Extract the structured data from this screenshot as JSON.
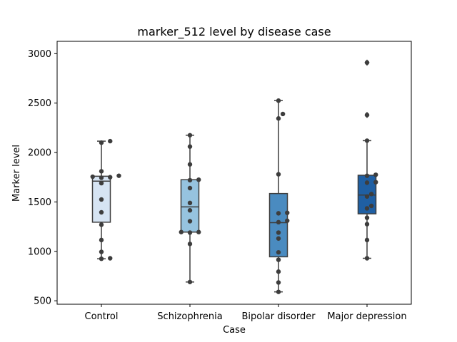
{
  "chart_data": {
    "type": "box",
    "title": "marker_512 level by disease case",
    "xlabel": "Case",
    "ylabel": "Marker level",
    "ylim": [
      465,
      3125
    ],
    "yticks": [
      500,
      1000,
      1500,
      2000,
      2500,
      3000
    ],
    "grid": false,
    "categories": [
      "Control",
      "Schizophrenia",
      "Bipolar disorder",
      "Major depression"
    ],
    "box_colors": [
      "#d6e4f3",
      "#96c3df",
      "#4a8bc0",
      "#1f5fa3"
    ],
    "boxes": [
      {
        "q1": 1295,
        "median": 1710,
        "q3": 1760,
        "whisker_low": 925,
        "whisker_high": 2115,
        "outliers": []
      },
      {
        "q1": 1195,
        "median": 1450,
        "q3": 1725,
        "whisker_low": 690,
        "whisker_high": 2175,
        "outliers": []
      },
      {
        "q1": 945,
        "median": 1290,
        "q3": 1585,
        "whisker_low": 590,
        "whisker_high": 2525,
        "outliers": []
      },
      {
        "q1": 1380,
        "median": 1570,
        "q3": 1770,
        "whisker_low": 930,
        "whisker_high": 2120,
        "outliers": [
          2380,
          2910
        ]
      }
    ],
    "points": [
      [
        2115,
        2100,
        1810,
        1765,
        1750,
        1745,
        1755,
        1690,
        1525,
        1395,
        1270,
        1115,
        995,
        930,
        925
      ],
      [
        2175,
        2060,
        1880,
        1725,
        1720,
        1640,
        1490,
        1415,
        1305,
        1195,
        1195,
        1190,
        1075,
        690
      ],
      [
        2525,
        2390,
        2345,
        1780,
        1390,
        1385,
        1310,
        1295,
        1190,
        1130,
        990,
        915,
        795,
        685,
        590
      ],
      [
        2910,
        2380,
        2120,
        1775,
        1765,
        1700,
        1695,
        1580,
        1555,
        1435,
        1460,
        1340,
        1275,
        1115,
        930
      ]
    ]
  }
}
